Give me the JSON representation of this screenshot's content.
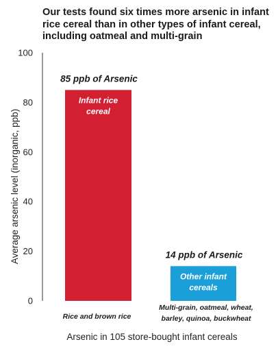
{
  "chart_data": {
    "type": "bar",
    "title": "Our tests found six times more arsenic in infant rice cereal than in other types of infant cereal, including oatmeal and multi-grain",
    "ylabel": "Average arsenic level (inorganic, ppb)",
    "xlabel": "Arsenic in 105 store-bought infant cereals",
    "ylim": [
      0,
      100
    ],
    "yticks": [
      0,
      20,
      40,
      60,
      80,
      100
    ],
    "grid": false,
    "bars": [
      {
        "value": 85,
        "color": "#d31f32",
        "value_label": "85 ppb of Arsenic",
        "inbar_label": [
          "Infant rice",
          "cereal"
        ],
        "category_label": [
          "Rice and brown rice"
        ]
      },
      {
        "value": 14,
        "color": "#1a9fd9",
        "value_label": "14 ppb of Arsenic",
        "inbar_label": [
          "Other infant",
          "cereals"
        ],
        "category_label": [
          "Multi-grain, oatmeal, wheat,",
          "barley, quinoa, buckwheat"
        ]
      }
    ]
  }
}
